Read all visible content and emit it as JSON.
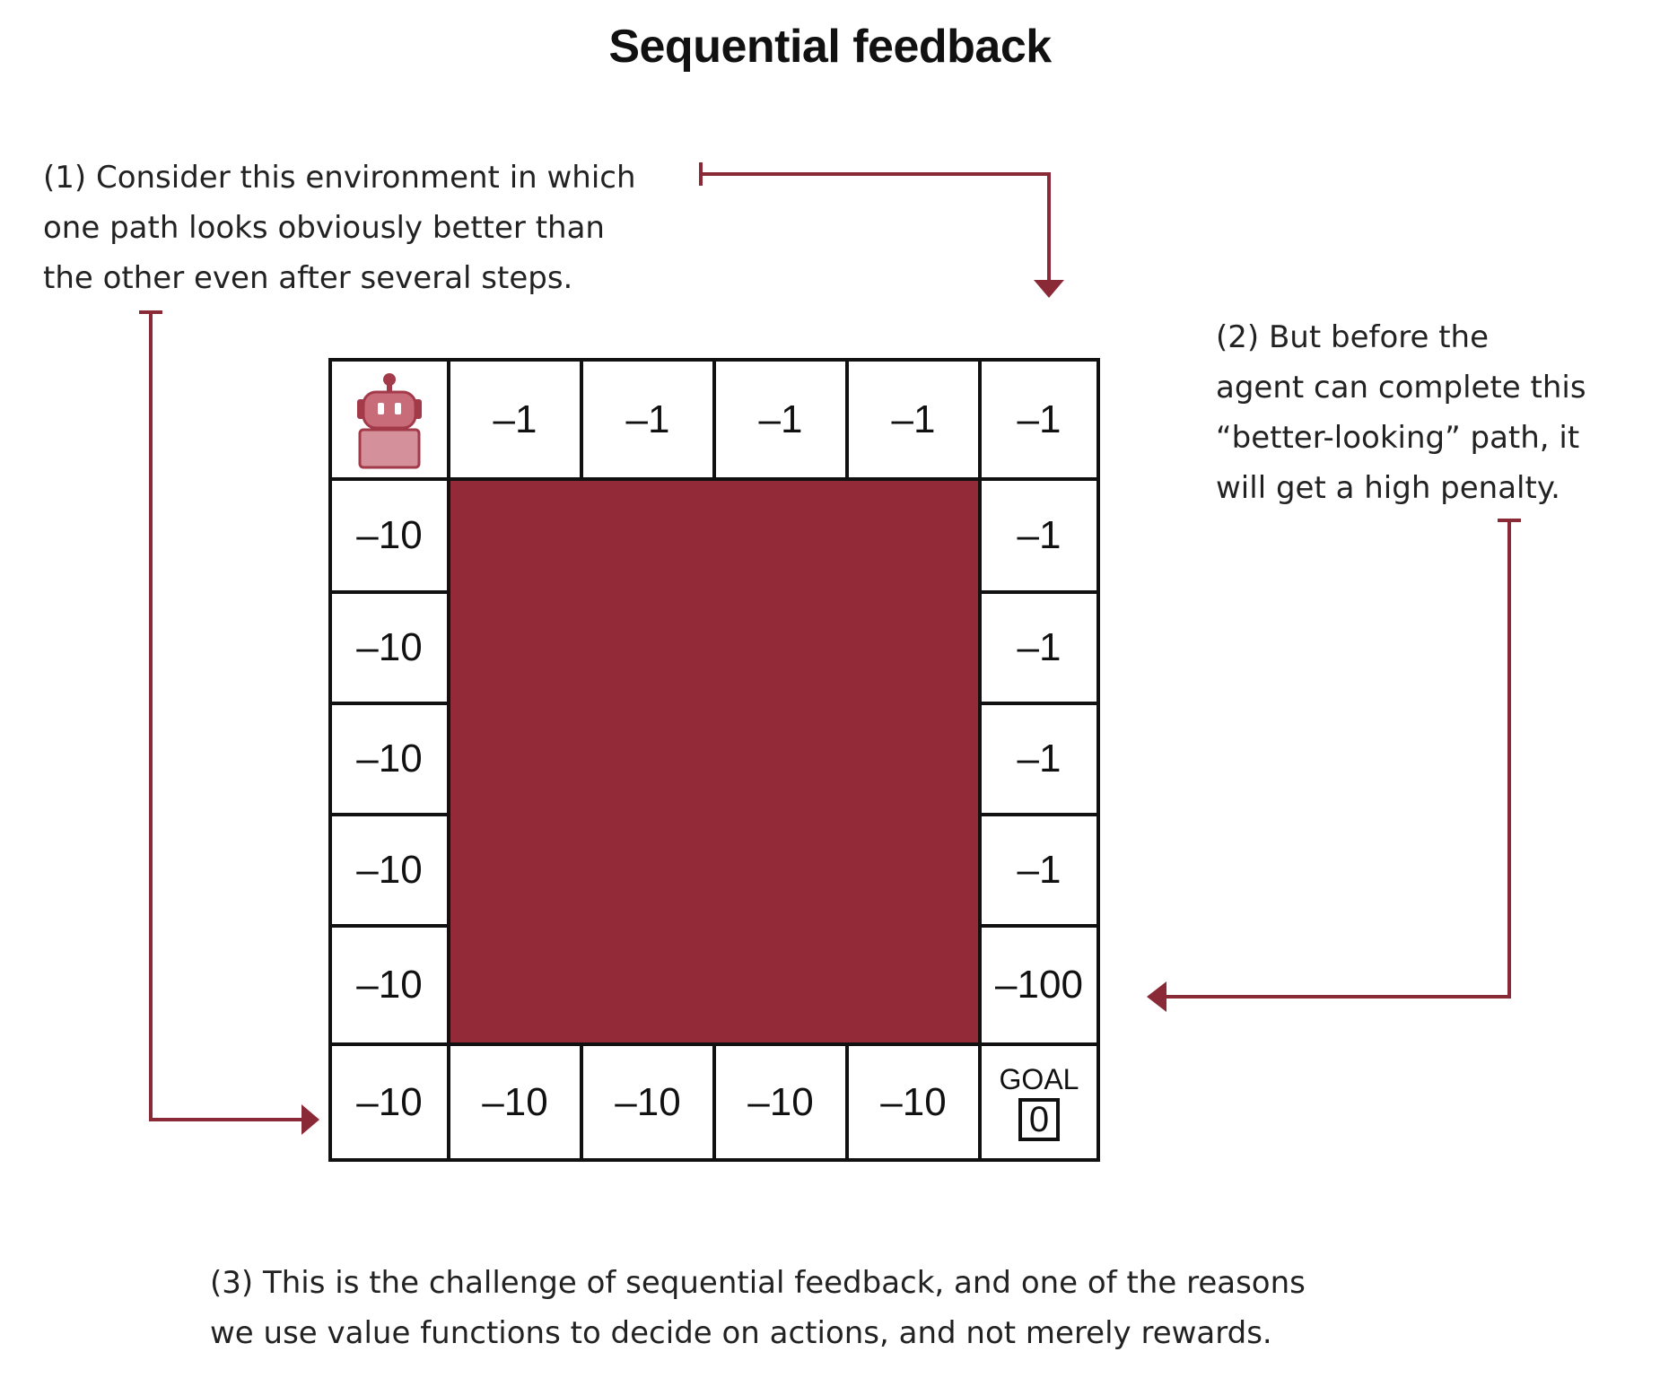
{
  "title": "Sequential feedback",
  "notes": {
    "note1": [
      "(1) Consider this environment in which",
      "one path looks obviously better than",
      "the other even after several steps."
    ],
    "note2": [
      "(2) But before the",
      "agent can complete this",
      "“better-looking” path, it",
      "will get a high penalty."
    ],
    "note3": [
      "(3) This is the challenge of sequential feedback, and one of the reasons",
      "we use value functions to decide on actions, and not merely rewards."
    ]
  },
  "grid": {
    "top_row": [
      "",
      "–1",
      "–1",
      "–1",
      "–1",
      "–1"
    ],
    "left_column": [
      "–10",
      "–10",
      "–10",
      "–10",
      "–10"
    ],
    "right_column": [
      "–1",
      "–1",
      "–1",
      "–1",
      "–100"
    ],
    "bottom_row": [
      "–10",
      "–10",
      "–10",
      "–10",
      "–10"
    ],
    "goal_label": "GOAL",
    "goal_value": "0",
    "agent_icon": "robot-icon",
    "blocked_color": "#922a37"
  },
  "colors": {
    "arrow": "#8b2a37",
    "wall": "#922a37",
    "robot": "#c96c7a"
  }
}
